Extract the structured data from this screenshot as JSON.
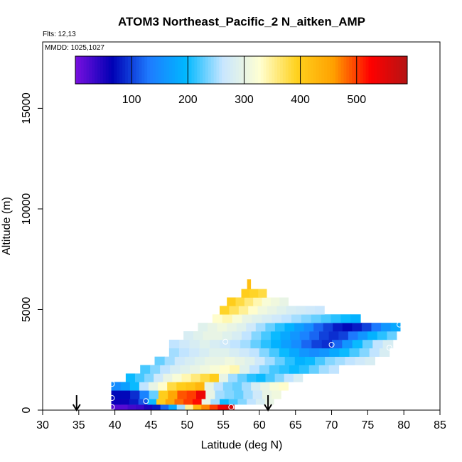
{
  "chart_data": {
    "type": "heatmap",
    "title": "ATOM3 Northeast_Pacific_2 N_aitken_AMP",
    "flights_label": "Flts: 12,13",
    "dates_label": "MMDD: 1025,1027",
    "xlabel": "Latitude (deg N)",
    "ylabel": "Altitude (m)",
    "xlim": [
      30,
      85
    ],
    "ylim": [
      0,
      18300
    ],
    "x_ticks": [
      "30",
      "35",
      "40",
      "45",
      "50",
      "55",
      "60",
      "65",
      "70",
      "75",
      "80",
      "85"
    ],
    "y_ticks": [
      "0",
      "5000",
      "10000",
      "15000"
    ],
    "colorbar": {
      "range": [
        0,
        590
      ],
      "ticks": [
        "100",
        "200",
        "300",
        "400",
        "500"
      ],
      "colors": [
        "#7a10e0",
        "#0000b4",
        "#1e7bff",
        "#00b8ff",
        "#c8e6ff",
        "#ffffd2",
        "#ffd21e",
        "#ffa000",
        "#ff0000",
        "#b41414"
      ]
    },
    "arrows_lat": [
      34.7,
      61.2
    ],
    "rows": [
      {
        "alt": [
          0,
          280
        ],
        "lat": [
          39.5,
          56.5
        ],
        "v": [
          20,
          20,
          30,
          35,
          50,
          80,
          120,
          180,
          250,
          350,
          430,
          470,
          500,
          540,
          560
        ]
      },
      {
        "alt": [
          280,
          560
        ],
        "lat": [
          39.5,
          62
        ],
        "v": [
          60,
          60,
          80,
          110,
          200,
          400,
          450,
          480,
          500,
          520,
          300,
          250,
          200,
          220,
          240,
          260,
          280,
          300
        ]
      },
      {
        "alt": [
          560,
          980
        ],
        "lat": [
          39.5,
          63
        ],
        "v": [
          70,
          70,
          90,
          140,
          230,
          400,
          450,
          490,
          500,
          540,
          300,
          250,
          240,
          230,
          250,
          270,
          300,
          310
        ]
      },
      {
        "alt": [
          980,
          1400
        ],
        "lat": [
          39.5,
          64
        ],
        "v": [
          150,
          170,
          200,
          260,
          300,
          330,
          380,
          400,
          410,
          430,
          300,
          260,
          240,
          230,
          250,
          280,
          300,
          320,
          330
        ]
      },
      {
        "alt": [
          1400,
          1820
        ],
        "lat": [
          41.5,
          66
        ],
        "v": [
          200,
          220,
          240,
          270,
          300,
          320,
          340,
          360,
          380,
          400,
          300,
          250,
          230,
          210,
          200,
          220,
          240,
          260,
          280
        ]
      },
      {
        "alt": [
          1820,
          2240
        ],
        "lat": [
          43.5,
          71
        ],
        "v": [
          220,
          240,
          260,
          280,
          290,
          300,
          310,
          320,
          330,
          340,
          290,
          260,
          240,
          220,
          210,
          200,
          210,
          230,
          250,
          260
        ]
      },
      {
        "alt": [
          2240,
          2660
        ],
        "lat": [
          45.5,
          76
        ],
        "v": [
          230,
          250,
          270,
          280,
          290,
          300,
          300,
          310,
          300,
          290,
          270,
          250,
          230,
          210,
          190,
          200,
          220,
          240,
          250,
          260,
          270,
          280
        ]
      },
      {
        "alt": [
          2660,
          3080
        ],
        "lat": [
          47.5,
          78
        ],
        "v": [
          250,
          260,
          270,
          280,
          290,
          290,
          280,
          270,
          260,
          240,
          220,
          200,
          180,
          160,
          150,
          160,
          180,
          200,
          220,
          240,
          260,
          280
        ]
      },
      {
        "alt": [
          3080,
          3500
        ],
        "lat": [
          47.5,
          78.5
        ],
        "v": [
          260,
          270,
          280,
          290,
          280,
          270,
          260,
          250,
          230,
          210,
          190,
          170,
          150,
          120,
          100,
          90,
          120,
          160,
          200,
          230,
          260,
          280
        ]
      },
      {
        "alt": [
          3500,
          3920
        ],
        "lat": [
          49.5,
          79
        ],
        "v": [
          280,
          290,
          300,
          300,
          290,
          280,
          260,
          240,
          220,
          200,
          180,
          160,
          140,
          120,
          100,
          90,
          100,
          130,
          160,
          190,
          210,
          230
        ]
      },
      {
        "alt": [
          3920,
          4340
        ],
        "lat": [
          51.5,
          79.5
        ],
        "v": [
          290,
          300,
          310,
          300,
          290,
          270,
          250,
          230,
          210,
          190,
          170,
          150,
          120,
          100,
          80,
          70,
          80,
          100,
          130,
          160,
          180
        ]
      },
      {
        "alt": [
          4340,
          4760
        ],
        "lat": [
          53.5,
          74
        ],
        "v": [
          330,
          340,
          320,
          300,
          290,
          280,
          270,
          260,
          250,
          240,
          230,
          220,
          210,
          200,
          190
        ]
      },
      {
        "alt": [
          4760,
          5180
        ],
        "lat": [
          54.5,
          69
        ],
        "v": [
          390,
          370,
          350,
          330,
          310,
          300,
          290,
          280,
          275,
          270,
          265
        ]
      },
      {
        "alt": [
          5180,
          5600
        ],
        "lat": [
          55.5,
          64
        ],
        "v": [
          400,
          380,
          360,
          340,
          320,
          310,
          300
        ]
      },
      {
        "alt": [
          5600,
          6020
        ],
        "lat": [
          57.5,
          61
        ],
        "v": [
          400,
          390,
          380
        ]
      },
      {
        "alt": [
          6020,
          6500
        ],
        "lat": [
          58.3,
          58.8
        ],
        "v": [
          420
        ]
      }
    ],
    "white_circles": [
      {
        "lat": 39.6,
        "alt": 150
      },
      {
        "lat": 39.6,
        "alt": 600
      },
      {
        "lat": 39.6,
        "alt": 1300
      },
      {
        "lat": 44.3,
        "alt": 450
      },
      {
        "lat": 55.3,
        "alt": 3400
      },
      {
        "lat": 56.1,
        "alt": 150
      },
      {
        "lat": 70,
        "alt": 3250
      },
      {
        "lat": 79.4,
        "alt": 4250
      },
      {
        "lat": 78,
        "alt": 3100
      }
    ]
  }
}
